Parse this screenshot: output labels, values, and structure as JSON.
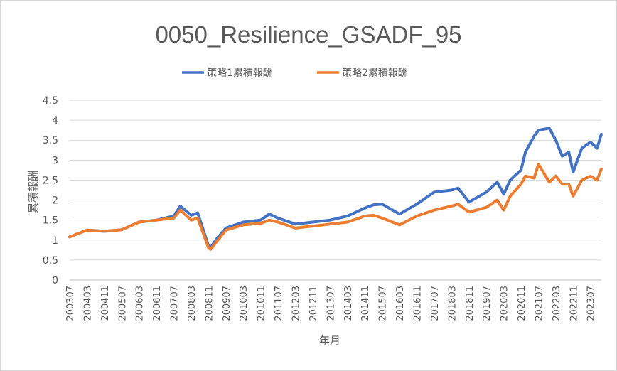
{
  "chart_data": {
    "type": "line",
    "title": "0050_Resilience_GSADF_95",
    "xlabel": "年月",
    "ylabel": "累積報酬",
    "ylim": [
      0,
      4.5
    ],
    "yticks": [
      "0",
      "0.5",
      "1",
      "1.5",
      "2",
      "2.5",
      "3",
      "3.5",
      "4",
      "4.5"
    ],
    "xticks": [
      "200307",
      "200403",
      "200411",
      "200507",
      "200603",
      "200611",
      "200707",
      "200803",
      "200811",
      "200907",
      "201003",
      "201011",
      "201107",
      "201203",
      "201211",
      "201307",
      "201403",
      "201411",
      "201507",
      "201603",
      "201611",
      "201707",
      "201803",
      "201811",
      "201907",
      "202003",
      "202011",
      "202107",
      "202203",
      "202211",
      "202307"
    ],
    "grid": true,
    "legend_position": "top",
    "colors": {
      "series1": "#4472c4",
      "series2": "#ed7d31"
    },
    "x_range": [
      "200307",
      "202312"
    ],
    "x": [
      "200307",
      "200403",
      "200411",
      "200507",
      "200603",
      "200611",
      "200707",
      "200710",
      "200803",
      "200806",
      "200811",
      "200812",
      "200903",
      "200907",
      "201003",
      "201011",
      "201103",
      "201107",
      "201203",
      "201211",
      "201307",
      "201403",
      "201411",
      "201503",
      "201507",
      "201603",
      "201611",
      "201707",
      "201803",
      "201806",
      "201811",
      "201907",
      "201912",
      "202003",
      "202006",
      "202011",
      "202101",
      "202105",
      "202107",
      "202112",
      "202203",
      "202206",
      "202209",
      "202211",
      "202303",
      "202307",
      "202310",
      "202312"
    ],
    "series": [
      {
        "name": "策略1累積報酬",
        "values": [
          1.08,
          1.25,
          1.22,
          1.26,
          1.45,
          1.5,
          1.6,
          1.85,
          1.62,
          1.68,
          0.85,
          0.82,
          1.05,
          1.3,
          1.45,
          1.5,
          1.65,
          1.55,
          1.4,
          1.45,
          1.5,
          1.6,
          1.8,
          1.88,
          1.9,
          1.65,
          1.9,
          2.2,
          2.25,
          2.3,
          1.95,
          2.2,
          2.45,
          2.15,
          2.5,
          2.75,
          3.2,
          3.6,
          3.75,
          3.8,
          3.5,
          3.1,
          3.2,
          2.7,
          3.3,
          3.45,
          3.3,
          3.65
        ]
      },
      {
        "name": "策略2累積報酬",
        "values": [
          1.08,
          1.25,
          1.22,
          1.26,
          1.45,
          1.5,
          1.55,
          1.75,
          1.5,
          1.55,
          0.8,
          0.77,
          0.98,
          1.25,
          1.38,
          1.42,
          1.5,
          1.45,
          1.3,
          1.35,
          1.4,
          1.45,
          1.6,
          1.62,
          1.55,
          1.38,
          1.6,
          1.75,
          1.85,
          1.9,
          1.7,
          1.82,
          2.0,
          1.75,
          2.1,
          2.4,
          2.6,
          2.55,
          2.9,
          2.45,
          2.6,
          2.4,
          2.4,
          2.1,
          2.5,
          2.6,
          2.5,
          2.78
        ]
      }
    ]
  }
}
